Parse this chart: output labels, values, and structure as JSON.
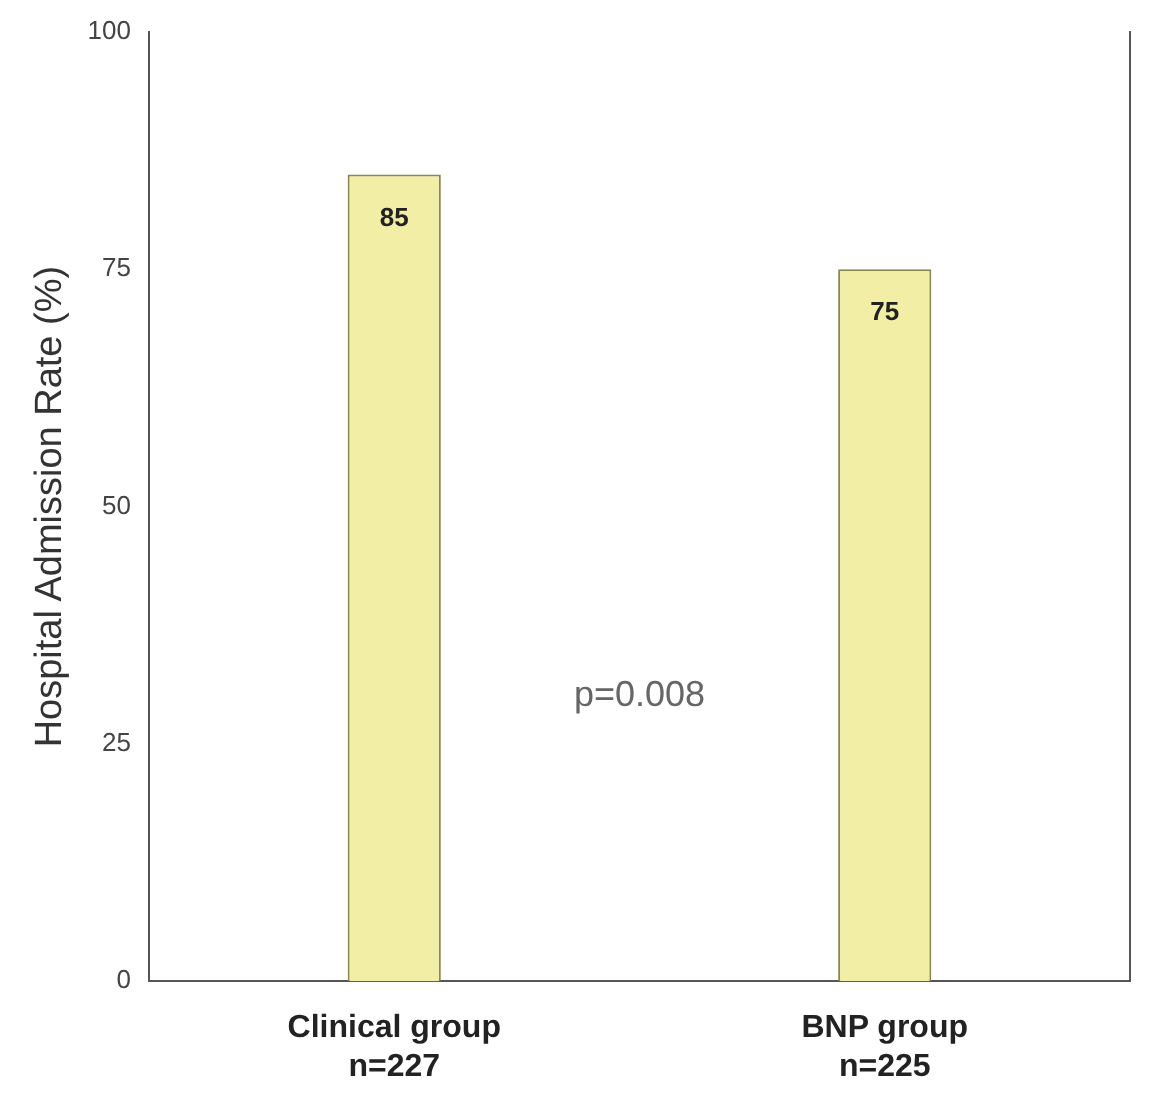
{
  "chart_data": {
    "type": "bar",
    "ylabel": "Hospital Admission Rate (%)",
    "categories": [
      "Clinical group\nn=227",
      "BNP group\nn=225"
    ],
    "values": [
      85,
      75
    ],
    "color": "#f3eea6",
    "ylim": [
      0,
      100
    ],
    "yticks": [
      0,
      25,
      50,
      75,
      100
    ],
    "grid": false,
    "legend": false,
    "data_labels": true,
    "annotations": [
      "p=0.008"
    ]
  }
}
